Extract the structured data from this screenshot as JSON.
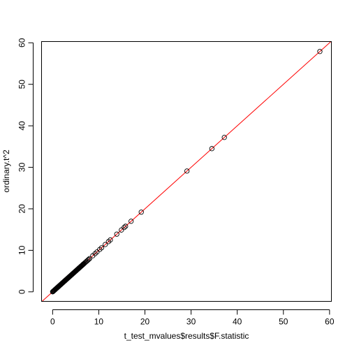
{
  "chart_data": {
    "type": "scatter",
    "title": "",
    "xlabel": "t_test_mvalues$results$F.statistic",
    "ylabel": "ordinary.t^2",
    "xlim": [
      -2.4,
      60.4
    ],
    "ylim": [
      -2.3,
      60.3
    ],
    "xticks": [
      0,
      10,
      20,
      30,
      40,
      50,
      60
    ],
    "yticks": [
      0,
      10,
      20,
      30,
      40,
      50,
      60
    ],
    "point_color": "#000000",
    "reference_line": {
      "slope": 1,
      "intercept": 0,
      "color": "#ff0000"
    },
    "points": [
      [
        0.0,
        0.0
      ],
      [
        0.1,
        0.1
      ],
      [
        0.2,
        0.2
      ],
      [
        0.3,
        0.3
      ],
      [
        0.4,
        0.4
      ],
      [
        0.5,
        0.5
      ],
      [
        0.6,
        0.6
      ],
      [
        0.7,
        0.7
      ],
      [
        0.8,
        0.8
      ],
      [
        0.9,
        0.9
      ],
      [
        1.0,
        1.0
      ],
      [
        1.1,
        1.1
      ],
      [
        1.2,
        1.2
      ],
      [
        1.3,
        1.3
      ],
      [
        1.4,
        1.4
      ],
      [
        1.5,
        1.5
      ],
      [
        1.6,
        1.6
      ],
      [
        1.7,
        1.7
      ],
      [
        1.8,
        1.8
      ],
      [
        1.9,
        1.9
      ],
      [
        2.0,
        2.0
      ],
      [
        2.1,
        2.1
      ],
      [
        2.2,
        2.2
      ],
      [
        2.3,
        2.3
      ],
      [
        2.4,
        2.4
      ],
      [
        2.5,
        2.5
      ],
      [
        2.6,
        2.6
      ],
      [
        2.7,
        2.7
      ],
      [
        2.8,
        2.8
      ],
      [
        2.9,
        2.9
      ],
      [
        3.0,
        3.0
      ],
      [
        3.1,
        3.1
      ],
      [
        3.2,
        3.2
      ],
      [
        3.3,
        3.3
      ],
      [
        3.4,
        3.4
      ],
      [
        3.5,
        3.5
      ],
      [
        3.6,
        3.6
      ],
      [
        3.7,
        3.7
      ],
      [
        3.8,
        3.8
      ],
      [
        3.9,
        3.9
      ],
      [
        4.0,
        4.0
      ],
      [
        4.1,
        4.1
      ],
      [
        4.2,
        4.2
      ],
      [
        4.3,
        4.3
      ],
      [
        4.4,
        4.4
      ],
      [
        4.5,
        4.5
      ],
      [
        4.6,
        4.6
      ],
      [
        4.7,
        4.7
      ],
      [
        4.8,
        4.8
      ],
      [
        4.9,
        4.9
      ],
      [
        5.0,
        5.0
      ],
      [
        5.1,
        5.1
      ],
      [
        5.2,
        5.2
      ],
      [
        5.3,
        5.3
      ],
      [
        5.4,
        5.4
      ],
      [
        5.5,
        5.5
      ],
      [
        5.6,
        5.6
      ],
      [
        5.7,
        5.7
      ],
      [
        5.8,
        5.8
      ],
      [
        5.9,
        5.9
      ],
      [
        6.0,
        6.0
      ],
      [
        6.1,
        6.1
      ],
      [
        6.2,
        6.2
      ],
      [
        6.3,
        6.3
      ],
      [
        6.4,
        6.4
      ],
      [
        6.5,
        6.5
      ],
      [
        6.6,
        6.6
      ],
      [
        6.7,
        6.7
      ],
      [
        6.8,
        6.8
      ],
      [
        7.0,
        7.0
      ],
      [
        7.2,
        7.2
      ],
      [
        7.4,
        7.4
      ],
      [
        7.6,
        7.6
      ],
      [
        7.8,
        7.8
      ],
      [
        8.0,
        8.0
      ],
      [
        8.7,
        8.7
      ],
      [
        9.2,
        9.2
      ],
      [
        9.6,
        9.6
      ],
      [
        10.2,
        10.2
      ],
      [
        10.6,
        10.6
      ],
      [
        11.4,
        11.4
      ],
      [
        12.1,
        12.1
      ],
      [
        12.5,
        12.5
      ],
      [
        13.9,
        13.9
      ],
      [
        14.9,
        14.9
      ],
      [
        15.5,
        15.5
      ],
      [
        15.8,
        15.8
      ],
      [
        17.0,
        17.0
      ],
      [
        19.2,
        19.2
      ],
      [
        29.1,
        29.1
      ],
      [
        34.5,
        34.5
      ],
      [
        37.2,
        37.2
      ],
      [
        57.9,
        57.9
      ]
    ]
  }
}
